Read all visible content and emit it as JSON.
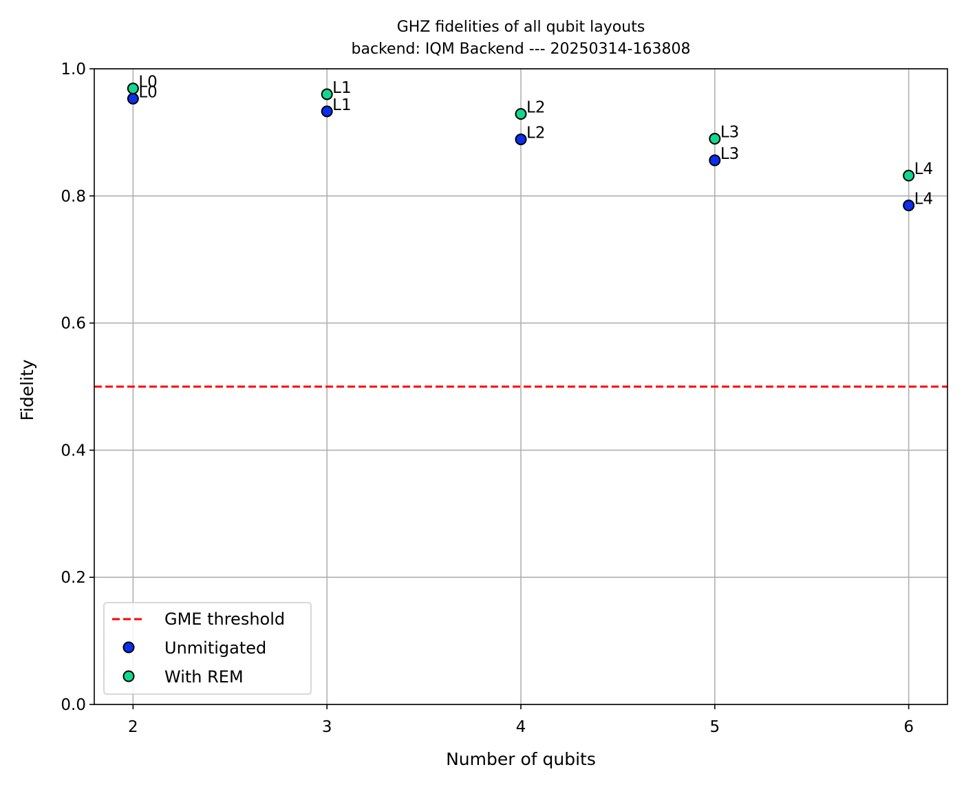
{
  "chart_data": {
    "type": "scatter",
    "title": "GHZ fidelities of all qubit layouts",
    "subtitle": "backend: IQM Backend --- 20250314-163808",
    "xlabel": "Number of qubits",
    "ylabel": "Fidelity",
    "xlim": [
      1.8,
      6.2
    ],
    "ylim": [
      0.0,
      1.0
    ],
    "xticks": [
      2,
      3,
      4,
      5,
      6
    ],
    "xtick_labels": [
      "2",
      "3",
      "4",
      "5",
      "6"
    ],
    "yticks": [
      0.0,
      0.2,
      0.4,
      0.6,
      0.8,
      1.0
    ],
    "ytick_labels": [
      "0.0",
      "0.2",
      "0.4",
      "0.6",
      "0.8",
      "1.0"
    ],
    "grid": true,
    "legend_position": "lower-left",
    "threshold": {
      "name": "GME threshold",
      "y": 0.5,
      "color": "#ff0000",
      "style": "dashed"
    },
    "series": [
      {
        "name": "Unmitigated",
        "color": "#0a2ff0",
        "x": [
          2,
          3,
          4,
          5,
          6
        ],
        "y": [
          0.953,
          0.933,
          0.889,
          0.856,
          0.785
        ],
        "labels": [
          "L0",
          "L1",
          "L2",
          "L3",
          "L4"
        ]
      },
      {
        "name": "With REM",
        "color": "#10d890",
        "x": [
          2,
          3,
          4,
          5,
          6
        ],
        "y": [
          0.969,
          0.96,
          0.929,
          0.89,
          0.832
        ],
        "labels": [
          "L0",
          "L1",
          "L2",
          "L3",
          "L4"
        ]
      }
    ]
  }
}
